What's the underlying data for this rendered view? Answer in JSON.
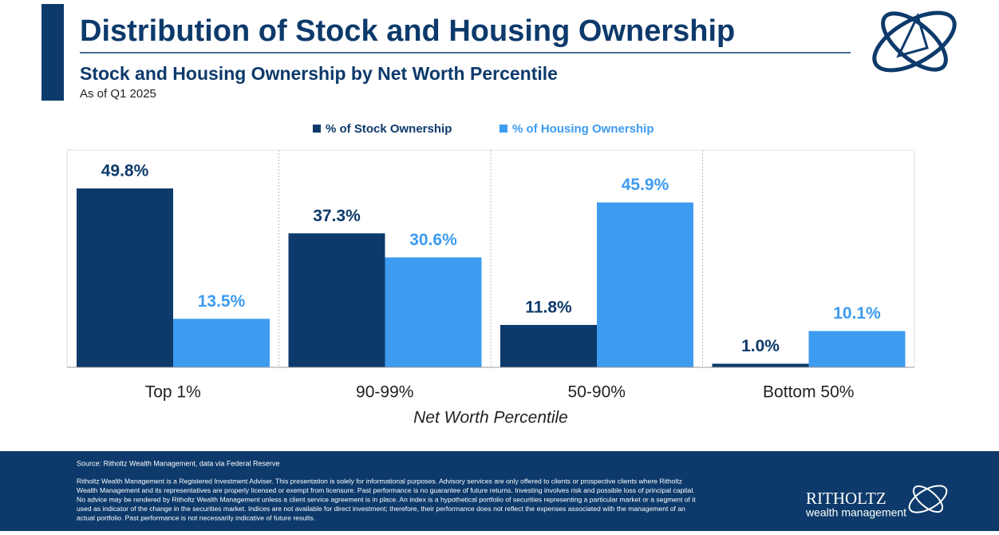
{
  "chart_data": {
    "type": "bar",
    "title": "Distribution of Stock and Housing Ownership",
    "subtitle": "Stock and Housing Ownership by Net Worth Percentile",
    "note": "As of Q1 2025",
    "x_label": "Net Worth Percentile",
    "categories": [
      "Top 1%",
      "90-99%",
      "50-90%",
      "Bottom 50%"
    ],
    "series": [
      {
        "name": "% of Stock Ownership",
        "color": "#0d3a6b",
        "values": [
          49.8,
          37.3,
          11.8,
          1.0
        ],
        "value_labels": [
          "49.8%",
          "37.3%",
          "11.8%",
          "1.0%"
        ]
      },
      {
        "name": "% of Housing Ownership",
        "color": "#3d9bf0",
        "values": [
          13.5,
          30.6,
          45.9,
          10.1
        ],
        "value_labels": [
          "13.5%",
          "30.6%",
          "45.9%",
          "10.1%"
        ]
      }
    ],
    "legend": "top"
  },
  "footer": {
    "source": "Source: Ritholtz Wealth Management, data via Federal Reserve",
    "disclaimer": [
      "Ritholtz Wealth Management is a Registered Investment Adviser. This presentation is solely for informational purposes. Advisory services are only offered to clients or prospective clients where Ritholtz",
      "Wealth Management and its representatives are properly licensed or exempt from licensure. Past performance is no guarantee of future returns. Investing involves risk and possible loss of principal capital.",
      "No advice may be rendered by Ritholtz Wealth Management unless a client service agreement is in place. An index is a hypothetical portfolio of securities representing a particular market or a segment of it",
      "used as indicator of the change in the securities market. Indices are not available for direct investment; therefore, their performance does not reflect the expenses associated with the management of an",
      "actual portfolio. Past performance is not necessarily indicative of future results."
    ],
    "logo_name": "RITHOLTZ",
    "logo_sub": "wealth management"
  }
}
